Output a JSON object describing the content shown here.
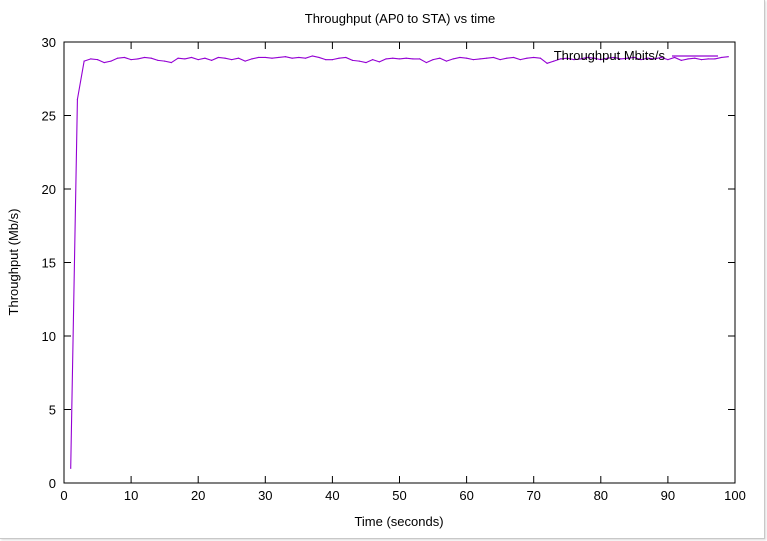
{
  "chart_data": {
    "type": "line",
    "title": "Throughput (AP0 to STA) vs time",
    "xlabel": "Time (seconds)",
    "ylabel": "Throughput (Mb/s)",
    "xlim": [
      0,
      100
    ],
    "ylim": [
      0,
      30
    ],
    "x_ticks": [
      0,
      10,
      20,
      30,
      40,
      50,
      60,
      70,
      80,
      90,
      100
    ],
    "y_ticks": [
      0,
      5,
      10,
      15,
      20,
      25,
      30
    ],
    "x_tick_labels": [
      "0",
      "10",
      "20",
      "30",
      "40",
      "50",
      "60",
      "70",
      "80",
      "90",
      "100"
    ],
    "y_tick_labels": [
      "0",
      "5",
      "10",
      "15",
      "20",
      "25",
      "30"
    ],
    "grid": false,
    "legend_position": "top-right",
    "series": [
      {
        "name": "Throughput Mbits/s",
        "color": "#9400d3",
        "x": [
          1,
          2,
          3,
          4,
          5,
          6,
          7,
          8,
          9,
          10,
          11,
          12,
          13,
          14,
          15,
          16,
          17,
          18,
          19,
          20,
          21,
          22,
          23,
          24,
          25,
          26,
          27,
          28,
          29,
          30,
          31,
          32,
          33,
          34,
          35,
          36,
          37,
          38,
          39,
          40,
          41,
          42,
          43,
          44,
          45,
          46,
          47,
          48,
          49,
          50,
          51,
          52,
          53,
          54,
          55,
          56,
          57,
          58,
          59,
          60,
          61,
          62,
          63,
          64,
          65,
          66,
          67,
          68,
          69,
          70,
          71,
          72,
          73,
          74,
          75,
          76,
          77,
          78,
          79,
          80,
          81,
          82,
          83,
          84,
          85,
          86,
          87,
          88,
          89,
          90,
          91,
          92,
          93,
          94,
          95,
          96,
          97,
          98,
          99
        ],
        "values": [
          1.0,
          26.1,
          28.7,
          28.85,
          28.8,
          28.6,
          28.7,
          28.9,
          28.95,
          28.8,
          28.85,
          28.95,
          28.9,
          28.75,
          28.7,
          28.6,
          28.9,
          28.85,
          28.95,
          28.8,
          28.9,
          28.75,
          28.95,
          28.9,
          28.8,
          28.9,
          28.7,
          28.85,
          28.95,
          28.95,
          28.9,
          28.95,
          29.0,
          28.9,
          28.95,
          28.9,
          29.05,
          28.95,
          28.8,
          28.8,
          28.9,
          28.95,
          28.75,
          28.7,
          28.6,
          28.8,
          28.65,
          28.85,
          28.9,
          28.85,
          28.9,
          28.85,
          28.85,
          28.6,
          28.8,
          28.9,
          28.7,
          28.85,
          28.95,
          28.9,
          28.8,
          28.85,
          28.9,
          28.95,
          28.8,
          28.9,
          28.95,
          28.8,
          28.9,
          28.95,
          28.9,
          28.55,
          28.7,
          28.85,
          28.9,
          28.8,
          28.85,
          28.95,
          28.9,
          28.8,
          28.9,
          28.95,
          28.85,
          28.9,
          28.95,
          28.8,
          28.9,
          28.85,
          28.95,
          28.8,
          28.95,
          28.75,
          28.85,
          28.9,
          28.8,
          28.85,
          28.85,
          28.95,
          29.0
        ]
      }
    ]
  }
}
